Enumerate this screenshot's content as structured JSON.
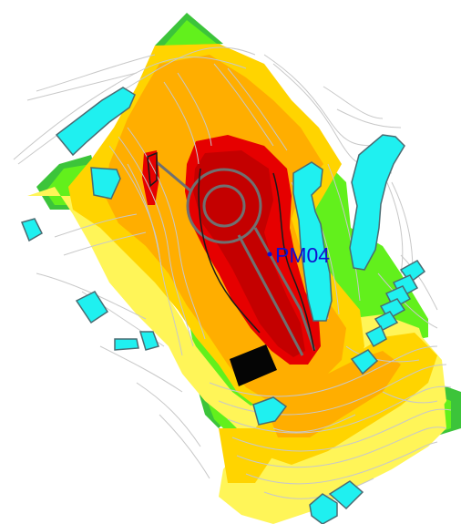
{
  "map": {
    "point_label": "PM04",
    "colors": {
      "background": "#ffffff",
      "zone_dark_green": "#3cc43a",
      "zone_green": "#62f01c",
      "zone_light_yellow": "#fff558",
      "zone_yellow": "#ffd400",
      "zone_orange": "#ffae00",
      "zone_red": "#e60000",
      "zone_dark_red": "#c40000",
      "building_fill": "#1ff0f0",
      "building_stroke": "#4a6b72",
      "contour_line": "#c8c8c8",
      "road_outline": "#707070",
      "reservoir_black": "#050505",
      "label_color": "#1010d0"
    }
  }
}
